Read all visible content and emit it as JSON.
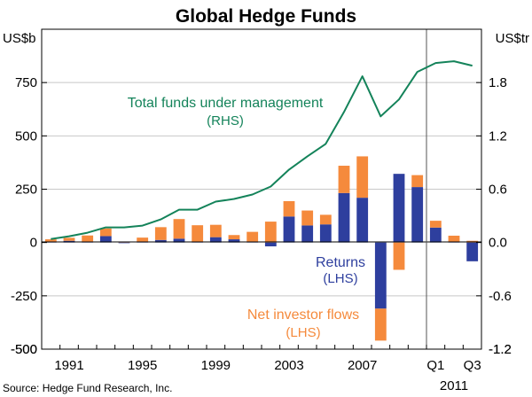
{
  "chart_data": {
    "type": "bar+line",
    "title": "Global Hedge Funds",
    "left_axis": {
      "unit": "US$b",
      "ylim": [
        -500,
        1000
      ],
      "ticks": [
        -500,
        -250,
        0,
        250,
        500,
        750
      ],
      "tick_labels": [
        "-500",
        "-250",
        "0",
        "250",
        "500",
        "750"
      ]
    },
    "right_axis": {
      "unit": "US$tr",
      "ylim": [
        -1.2,
        2.4
      ],
      "ticks": [
        -1.2,
        -0.6,
        0.0,
        0.6,
        1.2,
        1.8
      ],
      "tick_labels": [
        "-1.2",
        "-0.6",
        "0.0",
        "0.6",
        "1.2",
        "1.8"
      ]
    },
    "categories": [
      "1990",
      "1991",
      "1992",
      "1993",
      "1994",
      "1995",
      "1996",
      "1997",
      "1998",
      "1999",
      "2000",
      "2001",
      "2002",
      "2003",
      "2004",
      "2005",
      "2006",
      "2007",
      "2008",
      "2009",
      "2010",
      "2011 Q1",
      "2011 Q2",
      "2011 Q3"
    ],
    "x_tick_labels": [
      {
        "label": "1991",
        "category": "1991"
      },
      {
        "label": "1995",
        "category": "1995"
      },
      {
        "label": "1999",
        "category": "1999"
      },
      {
        "label": "2003",
        "category": "2003"
      },
      {
        "label": "2007",
        "category": "2007"
      },
      {
        "label": "Q1",
        "category": "2011 Q1"
      },
      {
        "label": "Q3",
        "category": "2011 Q3"
      }
    ],
    "x_sublabel": "2011",
    "series": [
      {
        "name": "Returns",
        "axis": "left",
        "kind": "stacked-bar",
        "color": "#2e3f9e",
        "values": [
          5,
          8,
          5,
          30,
          -3,
          5,
          12,
          18,
          3,
          25,
          15,
          5,
          -18,
          122,
          80,
          85,
          232,
          210,
          -310,
          322,
          260,
          70,
          4,
          -88
        ]
      },
      {
        "name": "Net investor flows",
        "axis": "left",
        "kind": "stacked-bar",
        "color": "#f58a3c",
        "values": [
          10,
          14,
          28,
          36,
          2,
          18,
          60,
          92,
          78,
          58,
          20,
          45,
          98,
          72,
          70,
          45,
          128,
          194,
          -150,
          -128,
          56,
          32,
          28,
          8
        ]
      },
      {
        "name": "Total funds under management",
        "axis": "right",
        "kind": "line",
        "color": "#14835a",
        "values": [
          0.04,
          0.07,
          0.11,
          0.17,
          0.17,
          0.19,
          0.26,
          0.37,
          0.37,
          0.46,
          0.49,
          0.54,
          0.63,
          0.82,
          0.97,
          1.11,
          1.47,
          1.87,
          1.42,
          1.61,
          1.92,
          2.02,
          2.04,
          1.99
        ]
      }
    ],
    "divider_after_category": "2010",
    "annotations": [
      {
        "series": "Total funds under management",
        "text": "Total funds under management",
        "subtext": "(RHS)",
        "color": "#14835a"
      },
      {
        "series": "Returns",
        "text": "Returns",
        "subtext": "(LHS)",
        "color": "#2e3f9e"
      },
      {
        "series": "Net investor flows",
        "text": "Net investor flows",
        "subtext": "(LHS)",
        "color": "#f58a3c"
      }
    ],
    "source": "Source: Hedge Fund Research, Inc."
  }
}
